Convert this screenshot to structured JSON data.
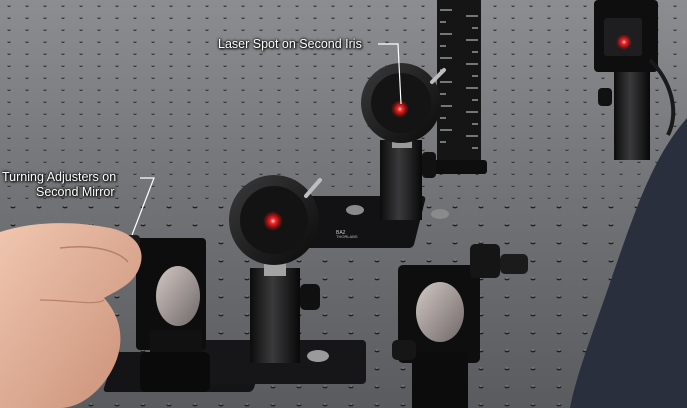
{
  "annotations": {
    "laser_spot_label": "Laser Spot on Second Iris",
    "adjusters_label_line1": "Turning Adjusters on",
    "adjusters_label_line2": "Second Mirror"
  },
  "base_labels": {
    "base_model": "BA2",
    "brand": "THORLABS"
  },
  "colors": {
    "table": "#6e6f72",
    "laser": "#ff2a2a",
    "callout_text": "#ffffff"
  }
}
